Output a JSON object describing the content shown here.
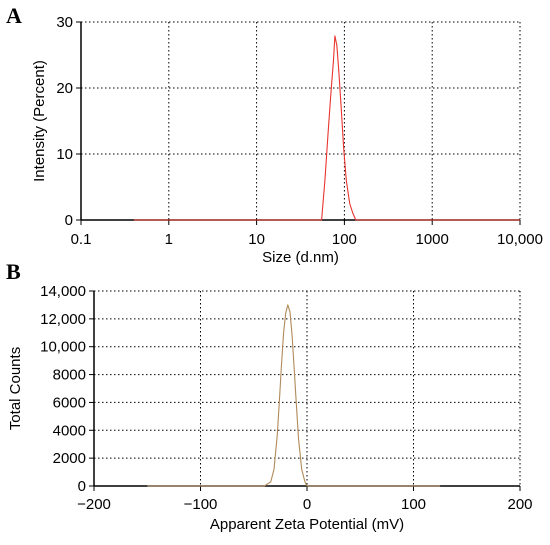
{
  "panels": {
    "a_label": "A",
    "b_label": "B"
  },
  "chart_data": [
    {
      "type": "line",
      "panel": "A",
      "title": "",
      "xlabel": "Size (d.nm)",
      "ylabel": "Intensity (Percent)",
      "x_scale": "log",
      "xlim": [
        0.1,
        10000
      ],
      "ylim": [
        0,
        30
      ],
      "x_ticks": [
        0.1,
        1,
        10,
        100,
        1000,
        10000
      ],
      "x_tick_labels": [
        "0.1",
        "1",
        "10",
        "100",
        "1000",
        "10,000"
      ],
      "y_ticks": [
        0,
        10,
        20,
        30
      ],
      "y_tick_labels": [
        "0",
        "10",
        "20",
        "30"
      ],
      "grid": true,
      "line_color": "#e8352f",
      "series": [
        {
          "x": [
            0.4,
            55,
            60,
            65,
            70,
            75,
            78,
            82,
            86,
            92,
            98,
            105,
            115,
            125,
            135,
            10000
          ],
          "y": [
            0,
            0,
            6,
            13,
            19,
            24,
            27.9,
            26.5,
            23,
            17,
            11,
            6,
            2.5,
            1,
            0,
            0
          ]
        }
      ]
    },
    {
      "type": "line",
      "panel": "B",
      "title": "",
      "xlabel": "Apparent Zeta Potential (mV)",
      "ylabel": "Total Counts",
      "xlim": [
        -200,
        200
      ],
      "ylim": [
        0,
        14000
      ],
      "x_ticks": [
        -200,
        -100,
        0,
        100,
        200
      ],
      "x_tick_labels": [
        "−200",
        "−100",
        "0",
        "100",
        "200"
      ],
      "y_ticks": [
        0,
        2000,
        4000,
        6000,
        8000,
        10000,
        12000,
        14000
      ],
      "y_tick_labels": [
        "0",
        "2000",
        "4000",
        "6000",
        "8000",
        "10,000",
        "12,000",
        "14,000"
      ],
      "grid": true,
      "line_color": "#b08a5a",
      "series": [
        {
          "x": [
            -150,
            -40,
            -34,
            -31,
            -28,
            -26,
            -24,
            -22,
            -20,
            -18,
            -16,
            -14,
            -12,
            -10,
            -8,
            -5,
            -2,
            0,
            125
          ],
          "y": [
            0,
            0,
            300,
            1200,
            3600,
            6000,
            8600,
            11000,
            12400,
            13000,
            12500,
            10800,
            8400,
            5800,
            3400,
            1200,
            300,
            0,
            0
          ]
        }
      ]
    }
  ]
}
